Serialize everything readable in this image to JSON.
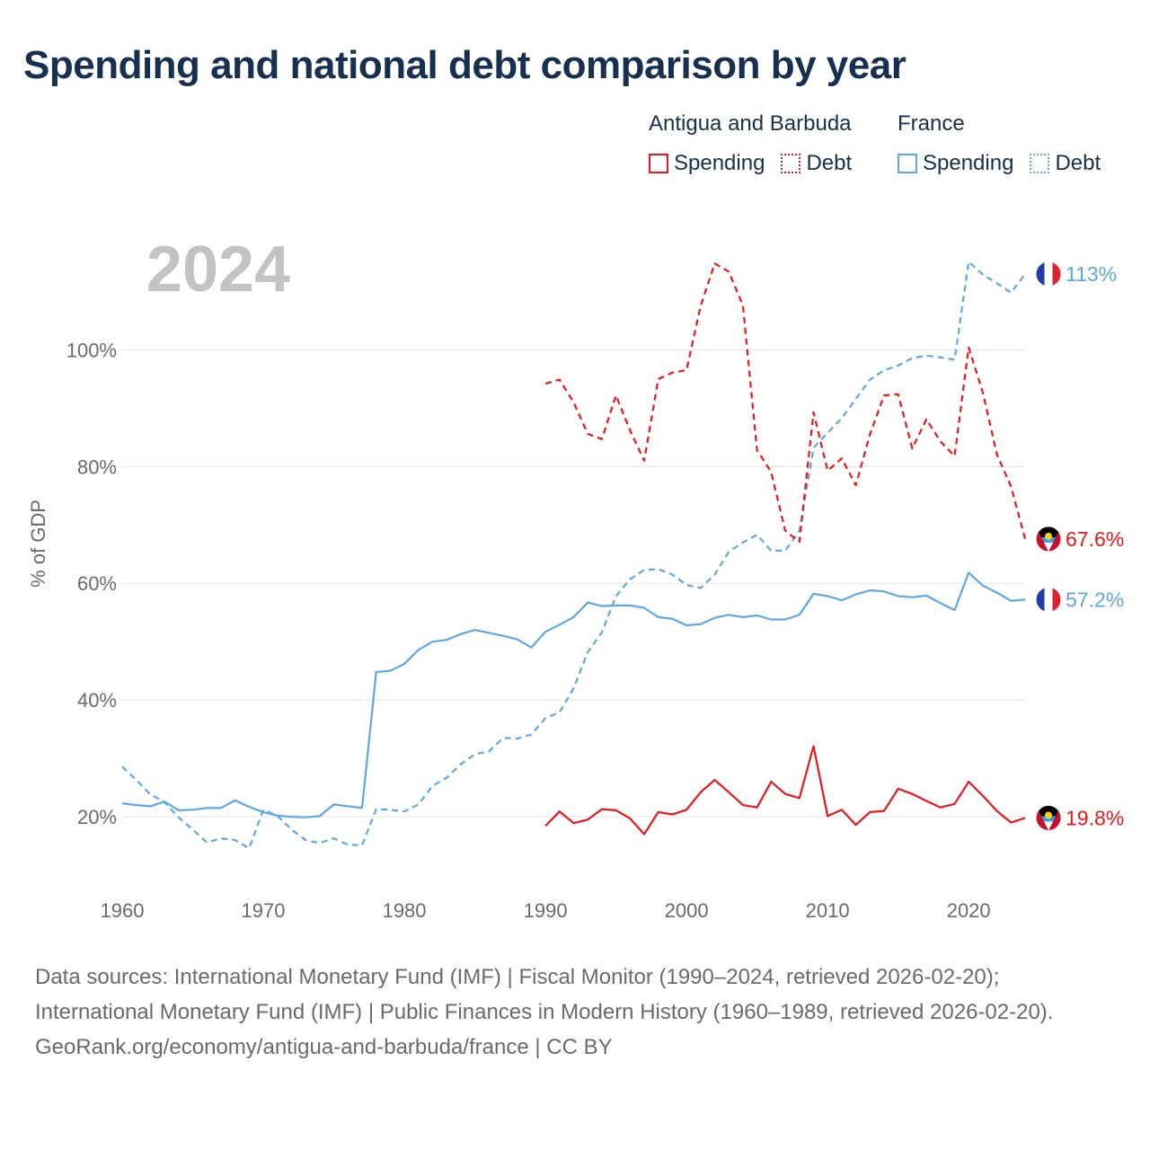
{
  "title": "Spending and national debt comparison by year",
  "legend": {
    "groups": [
      {
        "country": "Antigua and Barbuda",
        "spending_label": "Spending",
        "debt_label": "Debt",
        "color": "#e8171b"
      },
      {
        "country": "France",
        "spending_label": "Spending",
        "debt_label": "Debt",
        "color": "#5fa7e2"
      }
    ]
  },
  "footer": {
    "sources": "Data sources: International Monetary Fund (IMF) | Fiscal Monitor (1990–2024, retrieved 2026-02-20); International Monetary Fund (IMF) | Public Finances in Modern History (1960–1989, retrieved 2026-02-20).",
    "credit": "GeoRank.org/economy/antigua-and-barbuda/france | CC BY"
  },
  "chart_data": {
    "type": "line",
    "year_label": "2024",
    "ylabel": "% of GDP",
    "xlim": [
      1960,
      2024
    ],
    "ylim": [
      8,
      123
    ],
    "x_ticks": [
      1960,
      1970,
      1980,
      1990,
      2000,
      2010,
      2020
    ],
    "y_ticks": [
      20,
      40,
      60,
      80,
      100
    ],
    "y_tick_labels": [
      "20%",
      "40%",
      "60%",
      "80%",
      "100%"
    ],
    "series": [
      {
        "name": "France Spending",
        "color": "#5fa7e2",
        "dashed": false,
        "start_year": 1960,
        "end_label": "57.2%",
        "values": [
          22.3,
          22.0,
          21.8,
          22.6,
          21.1,
          21.2,
          21.5,
          21.5,
          22.8,
          21.7,
          20.8,
          20.2,
          20.0,
          19.9,
          20.1,
          22.1,
          21.8,
          21.5,
          44.8,
          45.0,
          46.2,
          48.6,
          50.0,
          50.3,
          51.3,
          52.0,
          51.5,
          51.0,
          50.4,
          49.0,
          51.7,
          52.9,
          54.2,
          56.7,
          56.1,
          56.2,
          56.2,
          55.8,
          54.2,
          53.9,
          52.8,
          53.0,
          54.1,
          54.6,
          54.2,
          54.5,
          53.8,
          53.8,
          54.6,
          58.2,
          57.8,
          57.1,
          58.1,
          58.8,
          58.6,
          57.8,
          57.6,
          57.9,
          56.6,
          55.4,
          61.8,
          59.6,
          58.4,
          57.0,
          57.2
        ]
      },
      {
        "name": "France Debt",
        "color": "#5fa7e2",
        "dashed": true,
        "start_year": 1960,
        "end_label": "113%",
        "values": [
          28.6,
          26.3,
          23.8,
          22.5,
          19.9,
          17.8,
          15.6,
          16.3,
          16.0,
          14.6,
          21.2,
          20.2,
          17.8,
          16.0,
          15.5,
          16.3,
          15.2,
          15.1,
          21.3,
          21.2,
          20.9,
          22.1,
          25.3,
          26.7,
          29.0,
          30.7,
          31.2,
          33.5,
          33.4,
          34.1,
          36.9,
          37.9,
          42.0,
          48.2,
          51.6,
          57.8,
          60.7,
          62.3,
          62.4,
          61.5,
          59.7,
          59.2,
          61.5,
          65.4,
          67.0,
          68.3,
          65.6,
          65.6,
          69.0,
          83.2,
          85.8,
          88.3,
          91.6,
          94.9,
          96.5,
          97.3,
          98.6,
          99.0,
          98.7,
          98.3,
          115.1,
          112.9,
          111.4,
          109.8,
          113.0
        ]
      },
      {
        "name": "Antigua and Barbuda Spending",
        "color": "#e8171b",
        "dashed": false,
        "start_year": 1990,
        "end_label": "19.8%",
        "values": [
          18.4,
          20.9,
          18.9,
          19.5,
          21.3,
          21.1,
          19.7,
          17.0,
          20.8,
          20.4,
          21.2,
          24.2,
          26.3,
          24.2,
          22.0,
          21.6,
          26.0,
          23.9,
          23.2,
          32.1,
          20.1,
          21.2,
          18.6,
          20.8,
          21.0,
          24.8,
          23.9,
          22.7,
          21.6,
          22.2,
          26.0,
          23.6,
          21.0,
          19.0,
          19.8
        ]
      },
      {
        "name": "Antigua and Barbuda Debt",
        "color": "#e8171b",
        "dashed": true,
        "start_year": 1990,
        "end_label": "67.6%",
        "values": [
          94.2,
          94.9,
          91.0,
          85.6,
          84.7,
          92.2,
          86.2,
          81.0,
          95.0,
          96.1,
          96.5,
          107.5,
          114.8,
          113.4,
          107.6,
          82.8,
          79.1,
          69.0,
          67.1,
          89.3,
          79.3,
          81.4,
          76.8,
          85.5,
          92.2,
          92.4,
          83.1,
          88.1,
          84.3,
          81.8,
          100.4,
          92.7,
          82.1,
          76.6,
          67.6
        ]
      }
    ]
  }
}
